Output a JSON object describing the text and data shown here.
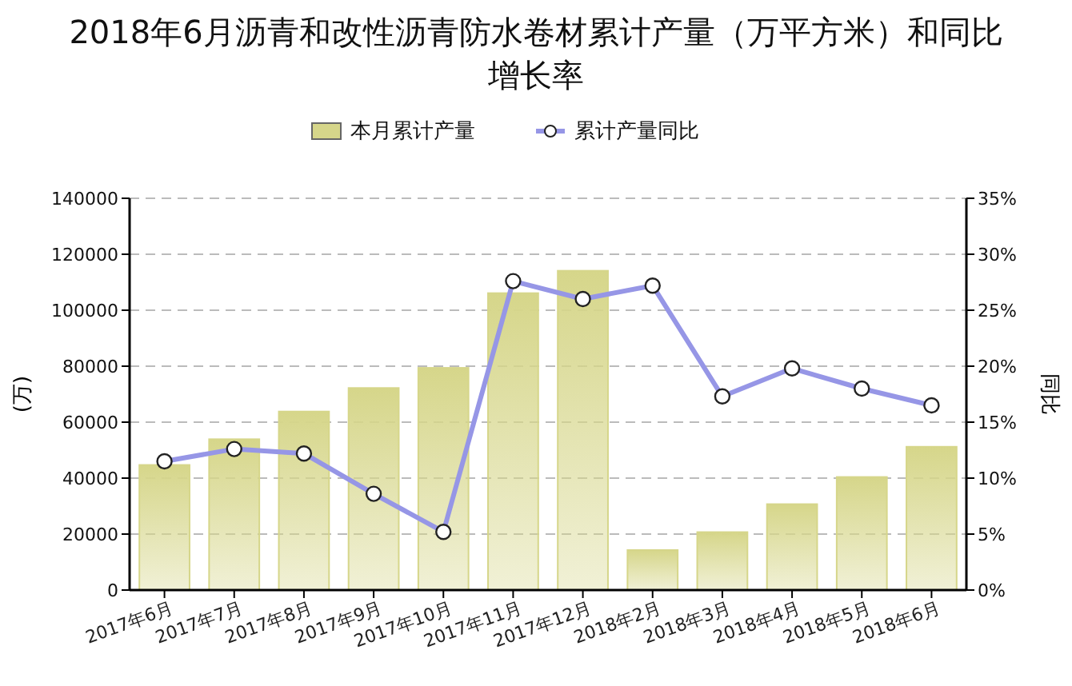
{
  "chart_data": {
    "type": "bar",
    "title": "2018年6月沥青和改性沥青防水卷材累计产量（万平方米）和同比增长率",
    "ylabel": "(万)",
    "y2label": "同比",
    "categories": [
      "2017年6月",
      "2017年7月",
      "2017年8月",
      "2017年9月",
      "2017年10月",
      "2017年11月",
      "2017年12月",
      "2018年2月",
      "2018年3月",
      "2018年4月",
      "2018年5月",
      "2018年6月"
    ],
    "series": [
      {
        "name": "本月累计产量",
        "color": "#d6d68a",
        "values": [
          44700,
          53900,
          63800,
          72200,
          79400,
          106100,
          114100,
          14300,
          20700,
          30700,
          40400,
          51200
        ]
      },
      {
        "name": "累计产量同比",
        "type": "line",
        "axis": "y2",
        "color": "#9696e6",
        "values": [
          11.5,
          12.6,
          12.2,
          8.6,
          5.2,
          27.6,
          26.0,
          27.2,
          17.3,
          19.8,
          18.0,
          16.5
        ]
      }
    ],
    "ylim": [
      0,
      140000
    ],
    "yticks": [
      0,
      20000,
      40000,
      60000,
      80000,
      100000,
      120000,
      140000
    ],
    "y2lim": [
      0,
      35
    ],
    "y2ticks": [
      {
        "value": 0,
        "label": "0%"
      },
      {
        "value": 5,
        "label": "5%"
      },
      {
        "value": 10,
        "label": "10%"
      },
      {
        "value": 15,
        "label": "15%"
      },
      {
        "value": 20,
        "label": "20%"
      },
      {
        "value": 25,
        "label": "25%"
      },
      {
        "value": 30,
        "label": "30%"
      },
      {
        "value": 35,
        "label": "35%"
      }
    ],
    "grid": "y",
    "legend": "top",
    "marker": "circle",
    "line_style": "solid"
  }
}
